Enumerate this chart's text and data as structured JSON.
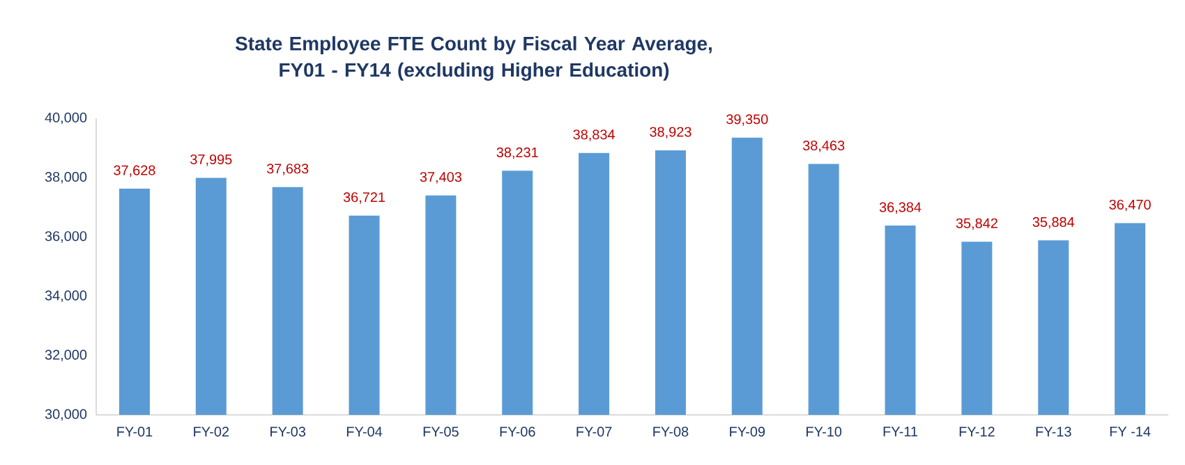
{
  "chart_data": {
    "type": "bar",
    "title": "State Employee FTE Count by Fiscal Year Average, FY01 - FY14 (excluding Higher Education)",
    "categories": [
      "FY-01",
      "FY-02",
      "FY-03",
      "FY-04",
      "FY-05",
      "FY-06",
      "FY-07",
      "FY-08",
      "FY-09",
      "FY-10",
      "FY-11",
      "FY-12",
      "FY-13",
      "FY -14"
    ],
    "values": [
      37628,
      37995,
      37683,
      36721,
      37403,
      38231,
      38834,
      38923,
      39350,
      38463,
      36384,
      35842,
      35884,
      36470
    ],
    "value_labels": [
      "37,628",
      "37,995",
      "37,683",
      "36,721",
      "37,403",
      "38,231",
      "38,834",
      "38,923",
      "39,350",
      "38,463",
      "36,384",
      "35,842",
      "35,884",
      "36,470"
    ],
    "color": "#5b9bd5",
    "ylim": [
      30000,
      40000
    ],
    "yticks": [
      {
        "value": 30000,
        "label": "30,000"
      },
      {
        "value": 32000,
        "label": "32,000"
      },
      {
        "value": 34000,
        "label": "34,000"
      },
      {
        "value": 36000,
        "label": "36,000"
      },
      {
        "value": 38000,
        "label": "38,000"
      },
      {
        "value": 40000,
        "label": "40,000"
      }
    ],
    "grid": false
  }
}
